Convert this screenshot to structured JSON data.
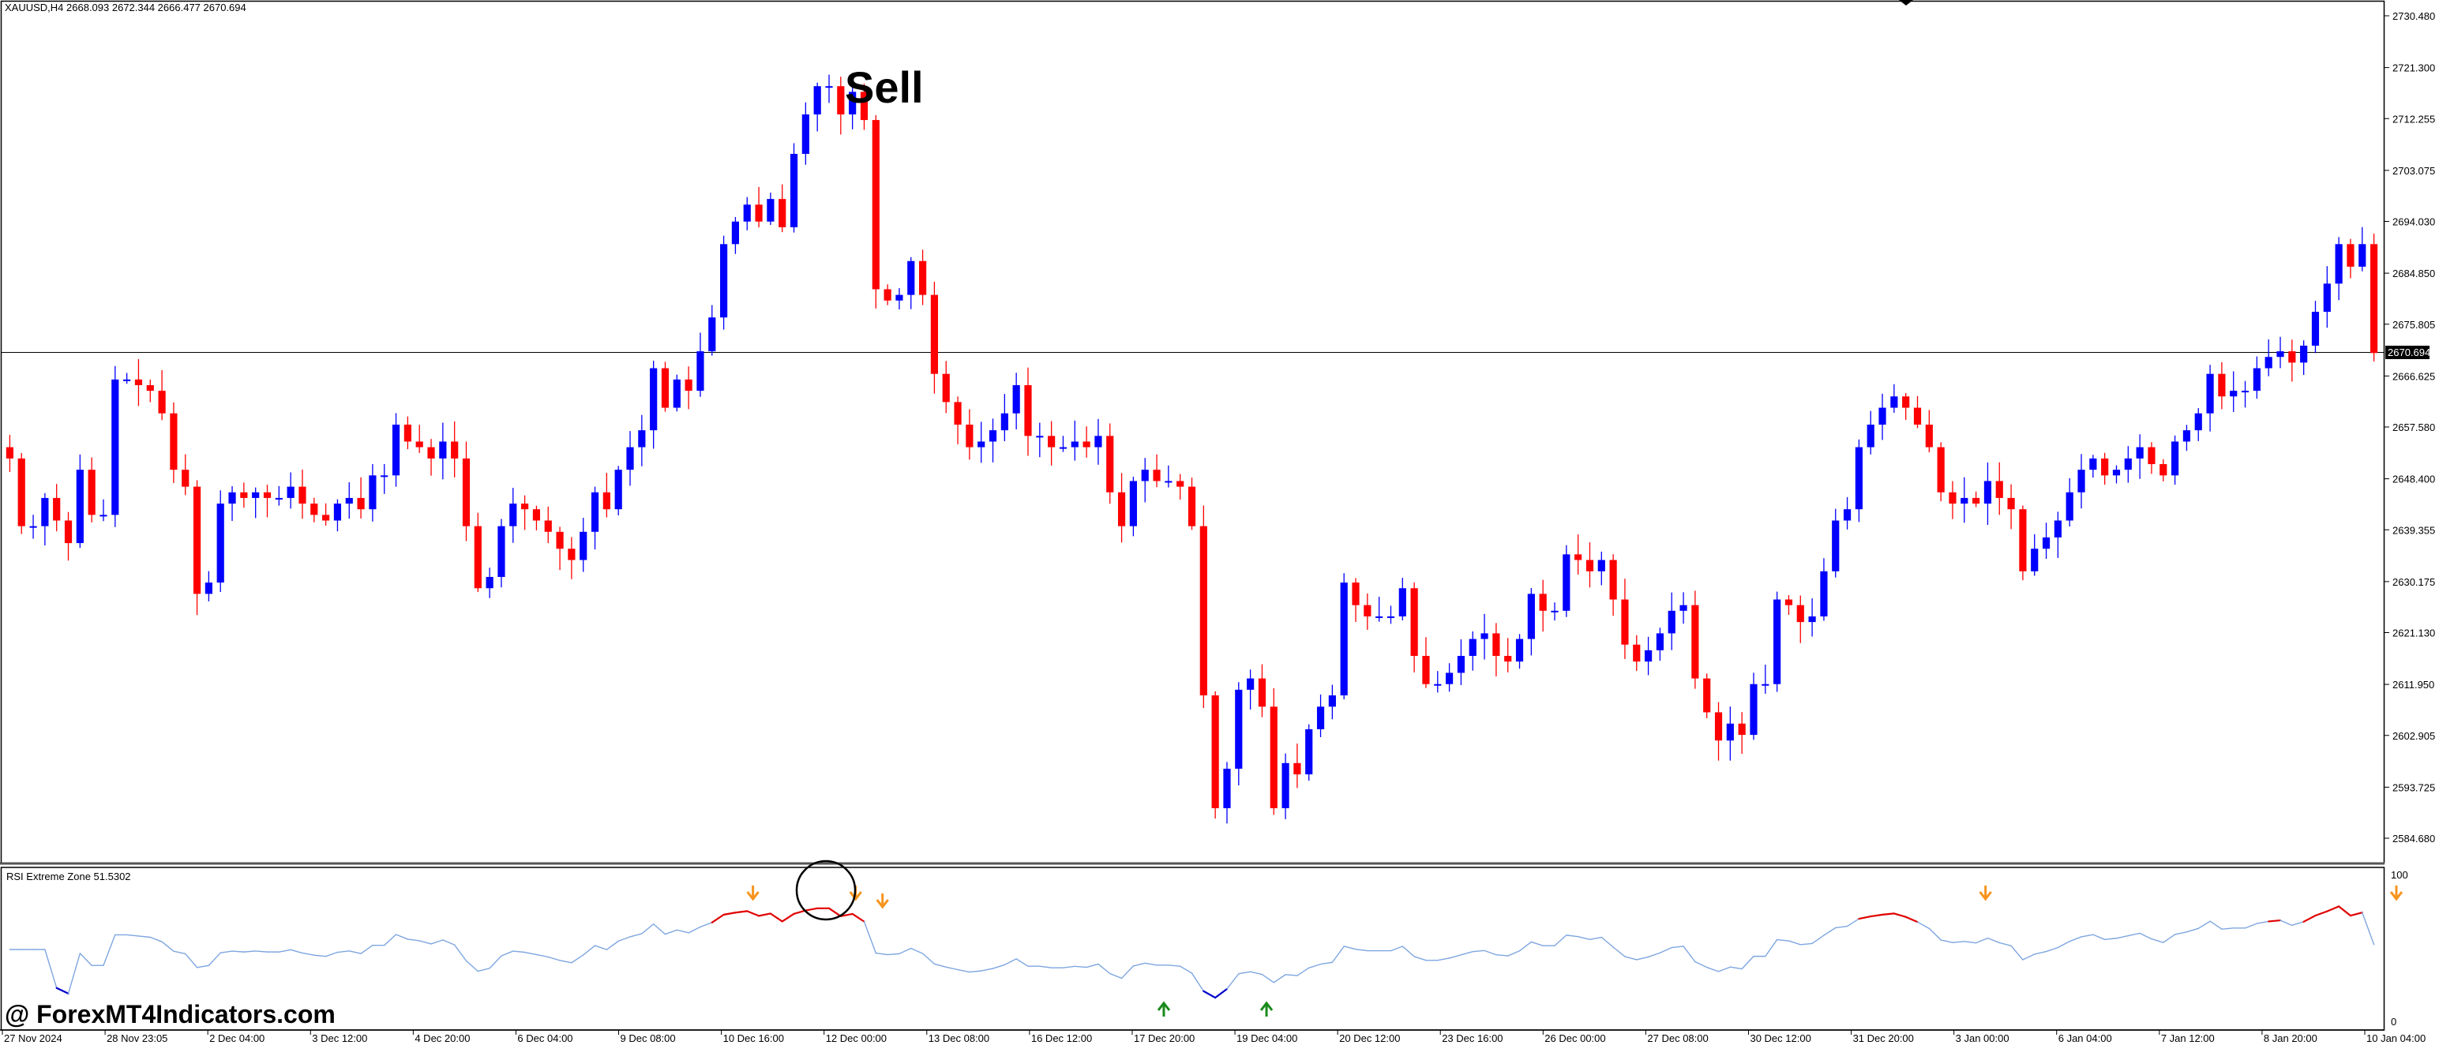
{
  "header": {
    "symbol_info": "XAUUSD,H4  2668.093 2672.344 2666.477 2670.694"
  },
  "indicator": {
    "title": "RSI Extreme Zone 51.5302",
    "levels": [
      "100",
      "0"
    ]
  },
  "annotations": {
    "signal_text": "Sell",
    "watermark": "@ ForexMT4Indicators.com"
  },
  "colors": {
    "bull": "#0000ff",
    "bear": "#ff0000",
    "rsi_line": "#7ea6e0",
    "rsi_overbought": "#e00000",
    "rsi_oversold": "#0000cc",
    "arrow_down": "#f7941d",
    "arrow_up": "#1a8a1a"
  },
  "chart_data": {
    "type": "candlestick",
    "symbol": "XAUUSD",
    "timeframe": "H4",
    "current_price": 2670.694,
    "ylim": [
      2577,
      2732
    ],
    "y_ticks": [
      "2730.480",
      "2721.300",
      "2712.255",
      "2703.075",
      "2694.030",
      "2684.850",
      "2675.805",
      "2666.625",
      "2657.580",
      "2648.400",
      "2639.355",
      "2630.175",
      "2621.130",
      "2611.950",
      "2602.905",
      "2593.725",
      "2584.680"
    ],
    "x_ticks": [
      "27 Nov 2024",
      "28 Nov 23:05",
      "2 Dec 04:00",
      "3 Dec 12:00",
      "4 Dec 20:00",
      "6 Dec 04:00",
      "9 Dec 08:00",
      "10 Dec 16:00",
      "12 Dec 00:00",
      "13 Dec 08:00",
      "16 Dec 12:00",
      "17 Dec 20:00",
      "19 Dec 04:00",
      "20 Dec 12:00",
      "23 Dec 16:00",
      "26 Dec 00:00",
      "27 Dec 08:00",
      "30 Dec 12:00",
      "31 Dec 20:00",
      "3 Jan 00:00",
      "6 Jan 04:00",
      "7 Jan 12:00",
      "8 Jan 20:00",
      "10 Jan 04:00"
    ],
    "close_path": [
      2652,
      2640,
      2640,
      2645,
      2641,
      2637,
      2650,
      2642,
      2642,
      2666,
      2666,
      2665,
      2664,
      2660,
      2650,
      2647,
      2628,
      2630,
      2644,
      2646,
      2645,
      2646,
      2645,
      2645,
      2647,
      2644,
      2642,
      2641,
      2644,
      2645,
      2643,
      2649,
      2649,
      2658,
      2655,
      2654,
      2652,
      2655,
      2652,
      2640,
      2629,
      2631,
      2640,
      2644,
      2643,
      2641,
      2639,
      2636,
      2634,
      2639,
      2646,
      2643,
      2650,
      2654,
      2657,
      2668,
      2661,
      2666,
      2664,
      2671,
      2677,
      2690,
      2694,
      2697,
      2694,
      2698,
      2693,
      2706,
      2713,
      2718,
      2718,
      2713,
      2717,
      2712,
      2682,
      2680,
      2681,
      2687,
      2681,
      2667,
      2662,
      2658,
      2654,
      2655,
      2657,
      2660,
      2665,
      2656,
      2656,
      2654,
      2654,
      2655,
      2654,
      2656,
      2646,
      2640,
      2648,
      2650,
      2648,
      2648,
      2647,
      2640,
      2610,
      2590,
      2597,
      2611,
      2613,
      2608,
      2590,
      2598,
      2596,
      2604,
      2608,
      2610,
      2630,
      2626,
      2624,
      2624,
      2624,
      2629,
      2617,
      2612,
      2612,
      2614,
      2617,
      2620,
      2621,
      2617,
      2616,
      2620,
      2628,
      2625,
      2625,
      2635,
      2634,
      2632,
      2634,
      2627,
      2619,
      2616,
      2618,
      2621,
      2625,
      2626,
      2613,
      2607,
      2602,
      2605,
      2603,
      2612,
      2612,
      2627,
      2626,
      2623,
      2624,
      2632,
      2641,
      2643,
      2654,
      2658,
      2661,
      2663,
      2661,
      2658,
      2654,
      2646,
      2644,
      2645,
      2644,
      2648,
      2645,
      2643,
      2632,
      2636,
      2638,
      2641,
      2646,
      2650,
      2652,
      2649,
      2650,
      2652,
      2654,
      2651,
      2649,
      2655,
      2657,
      2660,
      2667,
      2663,
      2664,
      2664,
      2668,
      2670,
      2671,
      2669,
      2672,
      2678,
      2683,
      2690,
      2686,
      2690,
      2670.694
    ],
    "rsi": {
      "ylim": [
        0,
        100
      ],
      "signals": [
        {
          "type": "sell",
          "time": "10 Dec 16:00"
        },
        {
          "type": "sell",
          "time": "12 Dec 00:00"
        },
        {
          "type": "sell",
          "time": "12 Dec 00:00"
        },
        {
          "type": "buy",
          "time": "17 Dec 20:00"
        },
        {
          "type": "buy",
          "time": "19 Dec 04:00"
        },
        {
          "type": "sell",
          "time": "3 Jan 00:00"
        },
        {
          "type": "sell",
          "time": "10 Jan 04:00"
        }
      ]
    }
  }
}
